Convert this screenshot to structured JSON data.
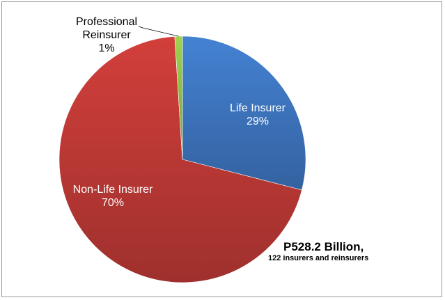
{
  "chart_data": {
    "type": "pie",
    "slices": [
      {
        "label": "Life Insurer",
        "value": 29,
        "display": "29%",
        "color": "#3f78c3"
      },
      {
        "label": "Non-Life Insurer",
        "value": 70,
        "display": "70%",
        "color": "#c23a37"
      },
      {
        "label": "Professional Reinsurer",
        "label_lines": [
          "Professional",
          "Reinsurer"
        ],
        "value": 1,
        "display": "1%",
        "color": "#94c249"
      }
    ]
  },
  "annotation": {
    "total": "P528.2 Billion,",
    "detail": "122 insurers and reinsurers"
  }
}
